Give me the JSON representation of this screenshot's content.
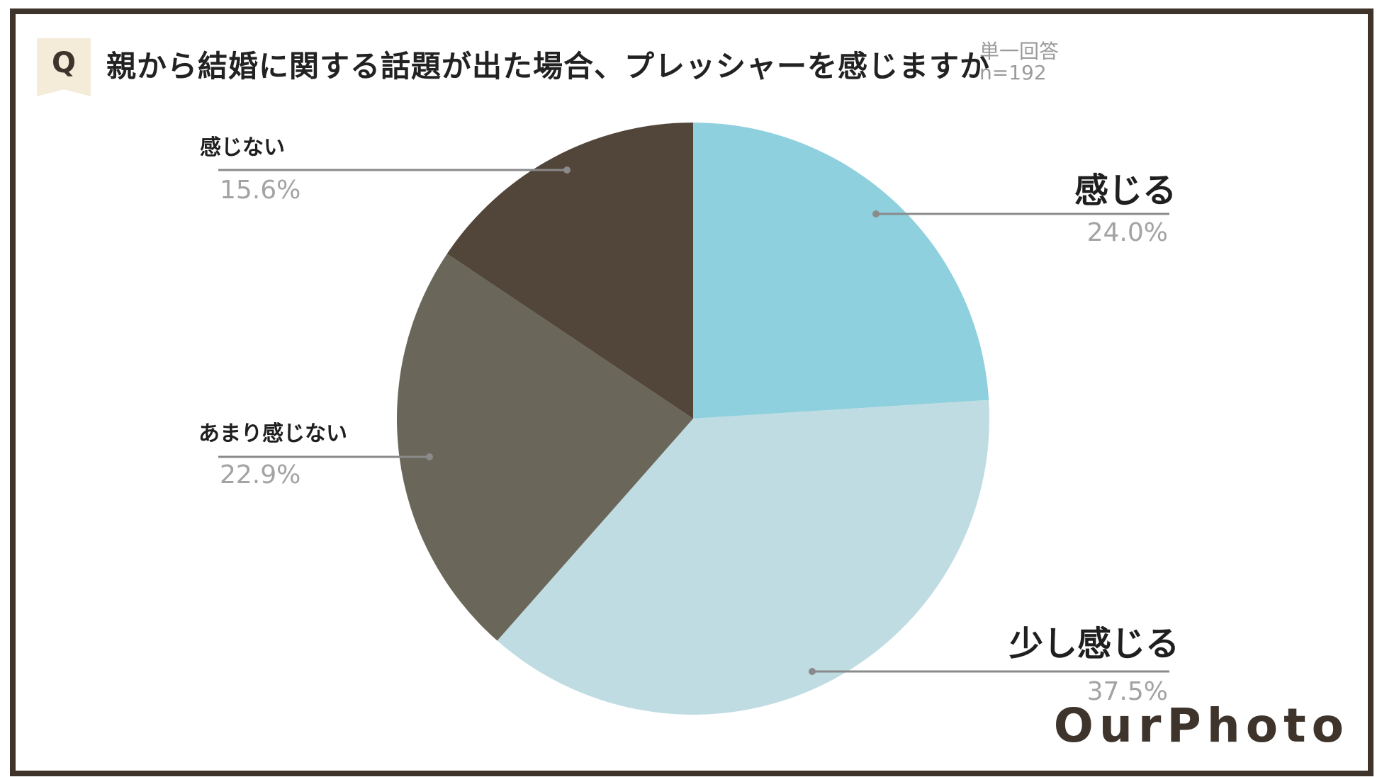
{
  "header": {
    "q_badge": "Q",
    "question": "親から結婚に関する話題が出た場合、プレッシャーを感じますか",
    "answer_type": "単一回答",
    "sample": "n=192"
  },
  "logo": "OurPhoto",
  "chart_data": {
    "type": "pie",
    "title": "親から結婚に関する話題が出た場合、プレッシャーを感じますか",
    "categories": [
      "感じる",
      "少し感じる",
      "あまり感じない",
      "感じない"
    ],
    "values": [
      24.0,
      37.5,
      22.9,
      15.6
    ],
    "value_labels": [
      "24.0%",
      "37.5%",
      "22.9%",
      "15.6%"
    ],
    "colors": [
      "#8fd0de",
      "#c0dce3",
      "#6a675a",
      "#524539"
    ],
    "start": "12 o'clock",
    "direction": "clockwise"
  }
}
